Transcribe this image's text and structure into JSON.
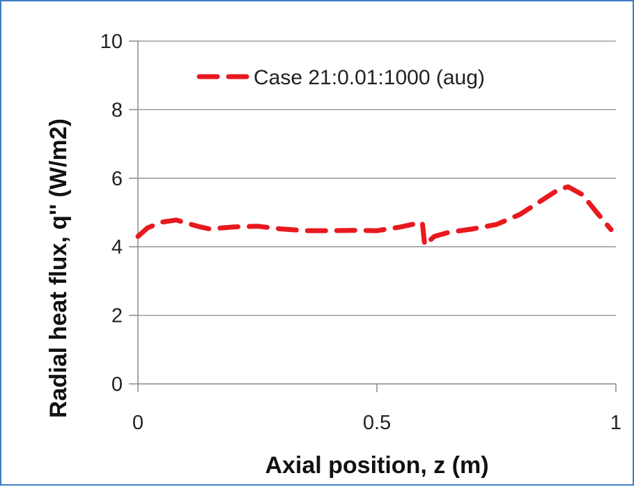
{
  "chart_data": {
    "type": "line",
    "title": "",
    "xlabel": "Axial position, z (m)",
    "ylabel": "Radial heat flux, q'' (W/m2)",
    "xlim": [
      0,
      1
    ],
    "ylim": [
      0,
      10
    ],
    "x_ticks": [
      0,
      0.5,
      1
    ],
    "x_tick_labels": [
      "0",
      "0.5",
      "1"
    ],
    "y_ticks": [
      0,
      2,
      4,
      6,
      8,
      10
    ],
    "y_tick_labels": [
      "0",
      "2",
      "4",
      "6",
      "8",
      "10"
    ],
    "grid": "horizontal",
    "legend_position": "top",
    "series": [
      {
        "name": "Case 21:0.01:1000 (aug)",
        "color": "#e8191f",
        "style": "dashed",
        "x": [
          0,
          0.02,
          0.05,
          0.08,
          0.1,
          0.13,
          0.15,
          0.2,
          0.25,
          0.3,
          0.35,
          0.4,
          0.45,
          0.5,
          0.55,
          0.58,
          0.595,
          0.6,
          0.62,
          0.65,
          0.7,
          0.75,
          0.8,
          0.85,
          0.88,
          0.9,
          0.93,
          0.96,
          0.99
        ],
        "y": [
          4.3,
          4.55,
          4.72,
          4.78,
          4.7,
          4.58,
          4.52,
          4.58,
          4.6,
          4.52,
          4.47,
          4.47,
          4.48,
          4.47,
          4.58,
          4.67,
          4.7,
          4.05,
          4.3,
          4.42,
          4.52,
          4.65,
          4.95,
          5.4,
          5.67,
          5.75,
          5.52,
          5.0,
          4.5
        ]
      }
    ]
  }
}
